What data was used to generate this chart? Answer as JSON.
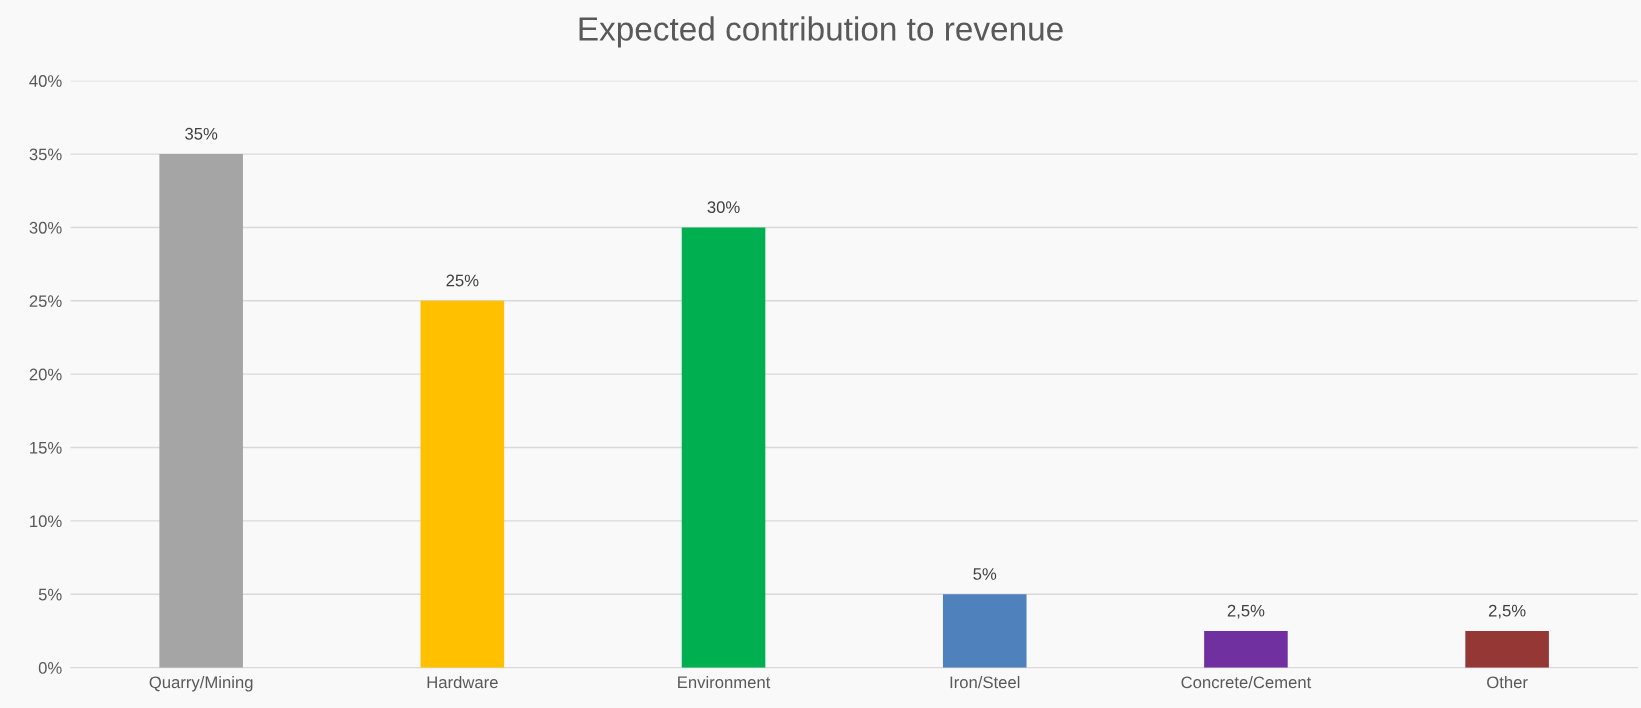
{
  "chart_data": {
    "type": "bar",
    "title": "Expected contribution to revenue",
    "categories": [
      "Quarry/Mining",
      "Hardware",
      "Environment",
      "Iron/Steel",
      "Concrete/Cement",
      "Other"
    ],
    "values": [
      35,
      25,
      30,
      5,
      2.5,
      2.5
    ],
    "colors": [
      "#a5a5a5",
      "#ffc000",
      "#00b050",
      "#4f81bd",
      "#7030a0",
      "#953735"
    ],
    "value_labels": [
      "35%",
      "25%",
      "30%",
      "5%",
      "2,5%",
      "2,5%"
    ],
    "ylim": [
      0,
      40
    ],
    "yticks": [
      {
        "value": 0,
        "label": "0%"
      },
      {
        "value": 5,
        "label": "5%"
      },
      {
        "value": 10,
        "label": "10%"
      },
      {
        "value": 15,
        "label": "15%"
      },
      {
        "value": 20,
        "label": "20%"
      },
      {
        "value": 25,
        "label": "25%"
      },
      {
        "value": 30,
        "label": "30%"
      },
      {
        "value": 35,
        "label": "35%"
      },
      {
        "value": 40,
        "label": "40%"
      }
    ],
    "grid": "y",
    "legend": false
  }
}
